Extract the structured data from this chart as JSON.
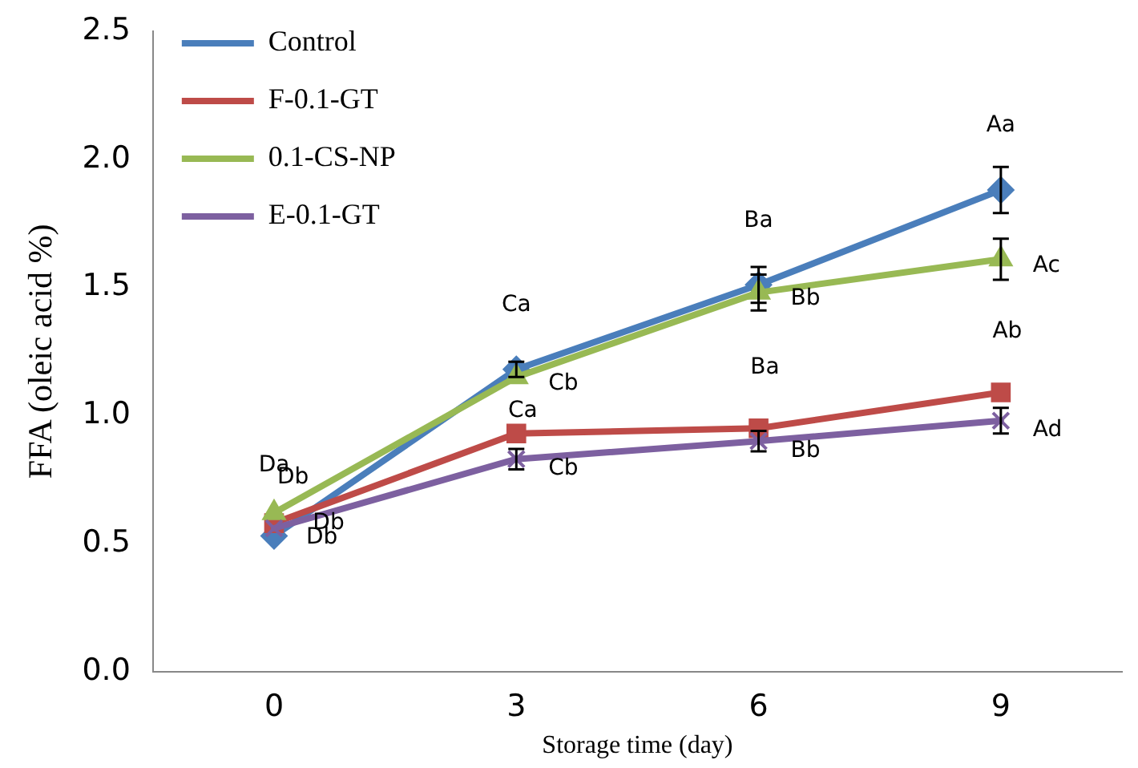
{
  "chart_data": {
    "type": "line",
    "xlabel": "Storage time (day)",
    "ylabel": "FFA (oleic acid %)",
    "categories": [
      "0",
      "3",
      "6",
      "9"
    ],
    "series": [
      {
        "name": "Control",
        "color": "#4a7ebb",
        "marker": "diamond",
        "values": [
          0.53,
          1.18,
          1.51,
          1.88
        ],
        "errors": [
          null,
          0.03,
          0.07,
          0.09
        ]
      },
      {
        "name": "F-0.1-GT",
        "color": "#be4b48",
        "marker": "square",
        "values": [
          0.58,
          0.93,
          0.95,
          1.09
        ],
        "errors": [
          null,
          null,
          null,
          null
        ]
      },
      {
        "name": "0.1-CS-NP",
        "color": "#98b954",
        "marker": "triangle",
        "values": [
          0.62,
          1.15,
          1.48,
          1.61
        ],
        "errors": [
          null,
          null,
          0.07,
          0.08
        ]
      },
      {
        "name": "E-0.1-GT",
        "color": "#7d60a0",
        "marker": "cross",
        "values": [
          0.56,
          0.83,
          0.9,
          0.98
        ],
        "errors": [
          null,
          0.04,
          0.04,
          0.05
        ]
      }
    ],
    "ylim": [
      0,
      2.5
    ],
    "yticks": [
      {
        "value": 0,
        "label": "0.0"
      },
      {
        "value": 0.5,
        "label": "0.5"
      },
      {
        "value": 1,
        "label": "1.0"
      },
      {
        "value": 1.5,
        "label": "1.5"
      },
      {
        "value": 2,
        "label": "2.0"
      },
      {
        "value": 2.5,
        "label": "2.5"
      }
    ],
    "grid": false,
    "legend": "top left",
    "annotations": [
      {
        "text": "Da",
        "x": "0",
        "y": 0.53
      },
      {
        "text": "Db",
        "x": "0",
        "y": 0.62
      },
      {
        "text": "Db",
        "x": "0",
        "y": 0.58
      },
      {
        "text": "Db",
        "x": "0",
        "y": 0.56
      },
      {
        "text": "Ca",
        "x": "3",
        "y": 1.18
      },
      {
        "text": "Cb",
        "x": "3",
        "y": 1.15
      },
      {
        "text": "Ca",
        "x": "3",
        "y": 0.93
      },
      {
        "text": "Cb",
        "x": "3",
        "y": 0.83
      },
      {
        "text": "Ba",
        "x": "6",
        "y": 1.51
      },
      {
        "text": "Bb",
        "x": "6",
        "y": 1.48
      },
      {
        "text": "Ba",
        "x": "6",
        "y": 0.95
      },
      {
        "text": "Bb",
        "x": "6",
        "y": 0.9
      },
      {
        "text": "Aa",
        "x": "9",
        "y": 1.88
      },
      {
        "text": "Ac",
        "x": "9",
        "y": 1.61
      },
      {
        "text": "Ab",
        "x": "9",
        "y": 1.09
      },
      {
        "text": "Ad",
        "x": "9",
        "y": 0.98
      }
    ]
  }
}
